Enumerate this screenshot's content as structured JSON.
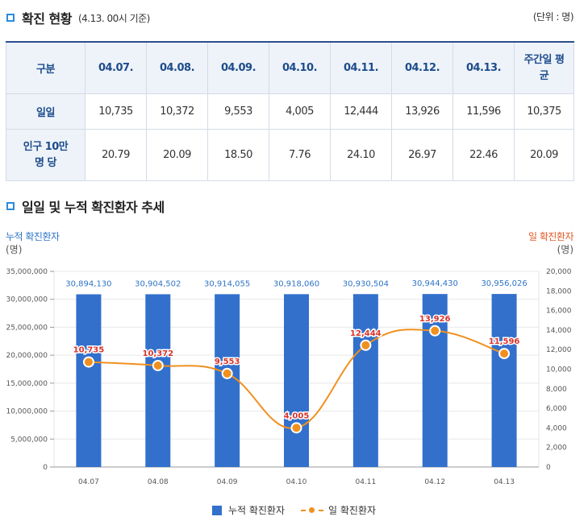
{
  "section1": {
    "title": "확진 현황",
    "subtitle": "(4.13. 00시 기준)",
    "unit": "(단위 : 명)"
  },
  "table": {
    "header": [
      "구분",
      "04.07.",
      "04.08.",
      "04.09.",
      "04.10.",
      "04.11.",
      "04.12.",
      "04.13.",
      "주간일 평균"
    ],
    "rows": [
      {
        "label": "일일",
        "values": [
          "10,735",
          "10,372",
          "9,553",
          "4,005",
          "12,444",
          "13,926",
          "11,596",
          "10,375"
        ]
      },
      {
        "label": "인구 10만 명 당",
        "values": [
          "20.79",
          "20.09",
          "18.50",
          "7.76",
          "24.10",
          "26.97",
          "22.46",
          "20.09"
        ]
      }
    ]
  },
  "section2": {
    "title": "일일 및 누적 확진환자 추세"
  },
  "axis_titles": {
    "left_title": "누적 확진환자",
    "left_unit": "(명)",
    "right_title": "일 확진환자",
    "right_unit": "(명)"
  },
  "legend": {
    "bar": "누적 확진환자",
    "line": "일 확진환자"
  },
  "colors": {
    "bar": "#3270cc",
    "line": "#f0901e",
    "bar_label": "#2f74c6",
    "line_label": "#d9342b",
    "header_text": "#1d4c8c"
  },
  "chart_data": {
    "type": "bar",
    "categories": [
      "04.07",
      "04.08",
      "04.09",
      "04.10",
      "04.11",
      "04.12",
      "04.13"
    ],
    "series": [
      {
        "name": "누적 확진환자",
        "type": "bar",
        "axis": "left",
        "values": [
          30894130,
          30904502,
          30914055,
          30918060,
          30930504,
          30944430,
          30956026
        ],
        "labels": [
          "30,894,130",
          "30,904,502",
          "30,914,055",
          "30,918,060",
          "30,930,504",
          "30,944,430",
          "30,956,026"
        ]
      },
      {
        "name": "일 확진환자",
        "type": "line",
        "axis": "right",
        "values": [
          10735,
          10372,
          9553,
          4005,
          12444,
          13926,
          11596
        ],
        "labels": [
          "10,735",
          "10,372",
          "9,553",
          "4,005",
          "12,444",
          "13,926",
          "11,596"
        ]
      }
    ],
    "y_left": {
      "ylim": [
        0,
        35000000
      ],
      "ticks": [
        "0",
        "5,000,000",
        "10,000,000",
        "15,000,000",
        "20,000,000",
        "25,000,000",
        "30,000,000",
        "35,000,000"
      ]
    },
    "y_right": {
      "ylim": [
        0,
        20000
      ],
      "ticks": [
        "0",
        "2,000",
        "4,000",
        "6,000",
        "8,000",
        "10,000",
        "12,000",
        "14,000",
        "16,000",
        "18,000",
        "20,000"
      ]
    },
    "grid": true,
    "legend_position": "bottom"
  }
}
